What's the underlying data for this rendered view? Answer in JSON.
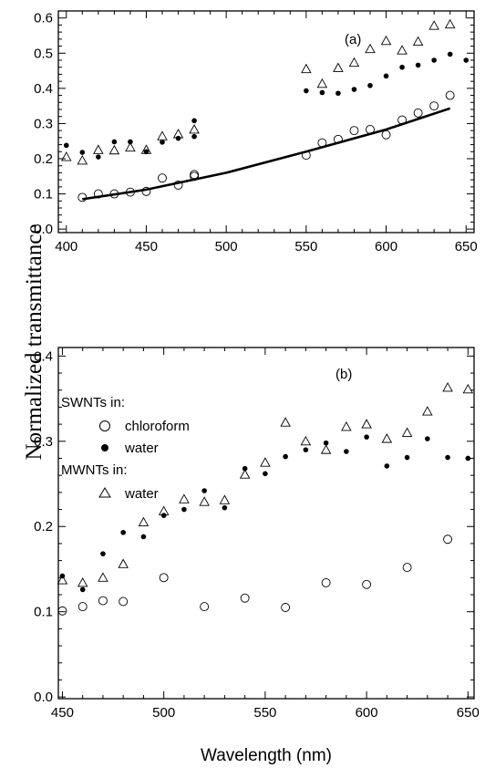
{
  "figure": {
    "ylabel": "Normalized transmittance",
    "xlabel": "Wavelength (nm)"
  },
  "chart_data": [
    {
      "type": "scatter",
      "panel_label": "(a)",
      "xlim": [
        395,
        655
      ],
      "ylim": [
        -0.01,
        0.62
      ],
      "xticks": [
        400,
        450,
        500,
        550,
        600,
        650
      ],
      "xtick_labels": [
        "400",
        "450",
        "500",
        "550",
        "600",
        "650"
      ],
      "yticks": [
        0.0,
        0.1,
        0.2,
        0.3,
        0.4,
        0.5,
        0.6
      ],
      "ytick_labels": [
        "0.0",
        "0.1",
        "0.2",
        "0.3",
        "0.4",
        "0.5",
        "0.6"
      ],
      "grid": false,
      "series": [
        {
          "marker": "open-circle",
          "x": [
            410,
            420,
            430,
            440,
            450,
            460,
            470,
            480,
            480,
            550,
            560,
            570,
            580,
            590,
            600,
            610,
            620,
            630,
            640
          ],
          "y": [
            0.09,
            0.1,
            0.1,
            0.105,
            0.107,
            0.145,
            0.125,
            0.15,
            0.155,
            0.21,
            0.245,
            0.255,
            0.28,
            0.283,
            0.268,
            0.31,
            0.33,
            0.35,
            0.38
          ]
        },
        {
          "marker": "filled-circle",
          "x": [
            400,
            410,
            420,
            430,
            440,
            450,
            460,
            470,
            480,
            480,
            550,
            560,
            570,
            580,
            590,
            600,
            610,
            620,
            630,
            640,
            650
          ],
          "y": [
            0.238,
            0.218,
            0.205,
            0.248,
            0.248,
            0.22,
            0.247,
            0.258,
            0.263,
            0.308,
            0.393,
            0.388,
            0.386,
            0.397,
            0.408,
            0.435,
            0.46,
            0.466,
            0.48,
            0.497,
            0.48
          ]
        },
        {
          "marker": "open-triangle",
          "x": [
            400,
            410,
            420,
            430,
            440,
            450,
            460,
            470,
            480,
            550,
            560,
            570,
            580,
            590,
            600,
            610,
            620,
            630,
            640
          ],
          "y": [
            0.205,
            0.195,
            0.225,
            0.224,
            0.232,
            0.225,
            0.264,
            0.27,
            0.283,
            0.455,
            0.413,
            0.458,
            0.473,
            0.512,
            0.535,
            0.508,
            0.533,
            0.578,
            0.582
          ]
        },
        {
          "marker": "line",
          "x": [
            410,
            450,
            500,
            550,
            600,
            640
          ],
          "y": [
            0.085,
            0.112,
            0.16,
            0.22,
            0.283,
            0.343
          ]
        }
      ]
    },
    {
      "type": "scatter",
      "panel_label": "(b)",
      "xlim": [
        448,
        653
      ],
      "ylim": [
        -0.002,
        0.41
      ],
      "xticks": [
        450,
        500,
        550,
        600,
        650
      ],
      "xtick_labels": [
        "450",
        "500",
        "550",
        "600",
        "650"
      ],
      "yticks": [
        0.0,
        0.1,
        0.2,
        0.3,
        0.4
      ],
      "ytick_labels": [
        "0.0",
        "0.1",
        "0.2",
        "0.3",
        "0.4"
      ],
      "grid": false,
      "legend": {
        "placement": "top-left",
        "group1_title": "SWNTs in:",
        "group2_title": "MWNTs in:",
        "entries": [
          "chloroform",
          "water",
          "water"
        ]
      },
      "series": [
        {
          "name": "chloroform",
          "marker": "open-circle",
          "x": [
            450,
            460,
            470,
            480,
            500,
            520,
            540,
            560,
            580,
            600,
            620,
            640
          ],
          "y": [
            0.101,
            0.106,
            0.113,
            0.112,
            0.14,
            0.106,
            0.116,
            0.105,
            0.134,
            0.132,
            0.152,
            0.185
          ]
        },
        {
          "name": "water",
          "marker": "filled-circle",
          "x": [
            450,
            460,
            470,
            480,
            490,
            500,
            510,
            520,
            530,
            540,
            550,
            560,
            570,
            580,
            590,
            600,
            610,
            620,
            630,
            640,
            650
          ],
          "y": [
            0.142,
            0.126,
            0.168,
            0.193,
            0.188,
            0.213,
            0.22,
            0.242,
            0.222,
            0.268,
            0.262,
            0.282,
            0.29,
            0.298,
            0.288,
            0.305,
            0.271,
            0.281,
            0.303,
            0.281,
            0.28
          ]
        },
        {
          "name": "water",
          "marker": "open-triangle",
          "x": [
            450,
            460,
            470,
            480,
            490,
            500,
            510,
            520,
            530,
            540,
            550,
            560,
            570,
            580,
            590,
            600,
            610,
            620,
            630,
            640,
            650
          ],
          "y": [
            0.137,
            0.134,
            0.14,
            0.156,
            0.205,
            0.218,
            0.232,
            0.229,
            0.231,
            0.261,
            0.275,
            0.322,
            0.3,
            0.29,
            0.317,
            0.32,
            0.303,
            0.31,
            0.335,
            0.363,
            0.361
          ]
        }
      ]
    }
  ]
}
